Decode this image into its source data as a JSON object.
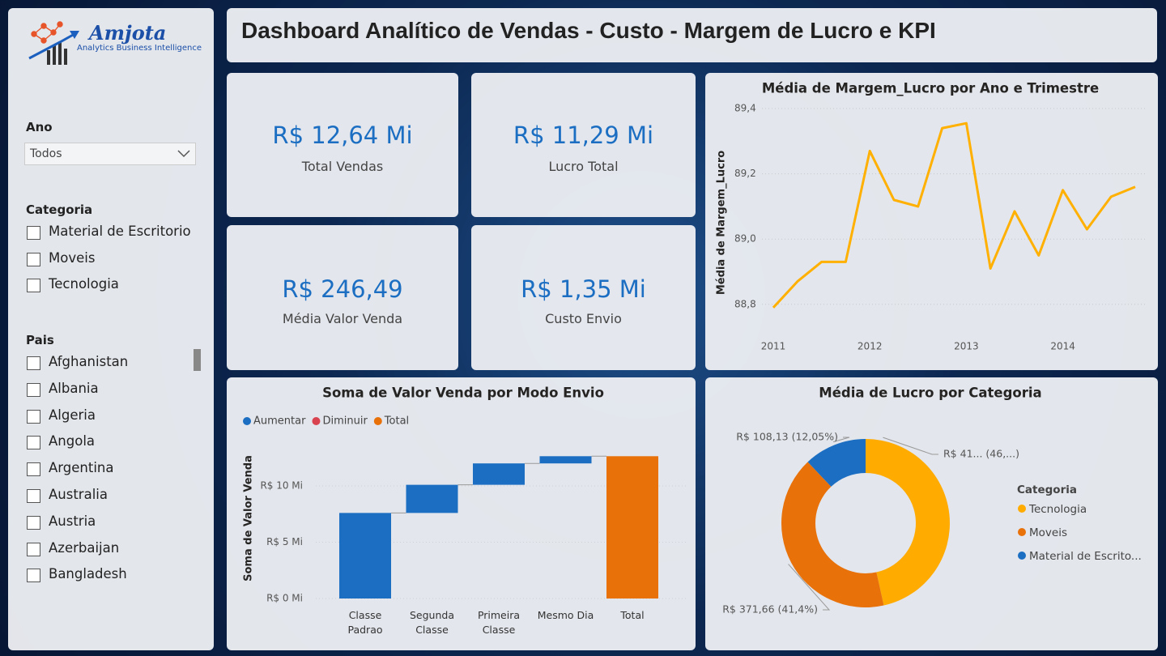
{
  "logo": {
    "name": "Amjota",
    "tagline": "Analytics Business Intelligence"
  },
  "header": {
    "title": "Dashboard Analítico de Vendas - Custo - Margem de Lucro e KPI"
  },
  "filters": {
    "year": {
      "label": "Ano",
      "selected": "Todos"
    },
    "category": {
      "label": "Categoria",
      "options": [
        "Material de Escritorio",
        "Moveis",
        "Tecnologia"
      ]
    },
    "country": {
      "label": "Pais",
      "options": [
        "Afghanistan",
        "Albania",
        "Algeria",
        "Angola",
        "Argentina",
        "Australia",
        "Austria",
        "Azerbaijan",
        "Bangladesh"
      ]
    }
  },
  "kpis": [
    {
      "value": "R$ 12,64 Mi",
      "label": "Total Vendas"
    },
    {
      "value": "R$ 11,29 Mi",
      "label": "Lucro Total"
    },
    {
      "value": "R$ 246,49",
      "label": "Média Valor Venda"
    },
    {
      "value": "R$ 1,35 Mi",
      "label": "Custo Envio"
    }
  ],
  "chart_data": [
    {
      "type": "line",
      "title": "Média de Margem_Lucro por Ano e Trimestre",
      "y_label": "Média de Margem_Lucro",
      "categories": [
        "2011",
        null,
        null,
        null,
        "2012",
        null,
        null,
        null,
        "2013",
        null,
        null,
        null,
        "2014",
        null,
        null,
        null
      ],
      "values": [
        88.79,
        88.87,
        88.93,
        88.93,
        89.27,
        89.12,
        89.1,
        89.34,
        89.355,
        88.91,
        89.085,
        88.95,
        89.15,
        89.03,
        89.13,
        89.16
      ],
      "color": "#ffb000",
      "ylim": [
        88.73,
        89.42
      ],
      "yticks": [
        {
          "value": 88.8,
          "label": "88,8"
        },
        {
          "value": 89.0,
          "label": "89,0"
        },
        {
          "value": 89.2,
          "label": "89,2"
        },
        {
          "value": 89.4,
          "label": "89,4"
        }
      ],
      "grid": true
    },
    {
      "type": "waterfall",
      "title": "Soma de Valor Venda por Modo Envio",
      "y_label": "Soma de Valor Venda",
      "categories": [
        "Classe Padrao",
        "Segunda Classe",
        "Primeira Classe",
        "Mesmo Dia",
        "Total"
      ],
      "values": [
        7.6,
        2.5,
        1.9,
        0.64,
        12.64
      ],
      "legend": [
        {
          "name": "Aumentar",
          "color": "#1b6ec2"
        },
        {
          "name": "Diminuir",
          "color": "#d9434f"
        },
        {
          "name": "Total",
          "color": "#e8710a"
        }
      ],
      "ylim": [
        0,
        14
      ],
      "yticks": [
        {
          "value": 0,
          "label": "R$ 0 Mi"
        },
        {
          "value": 5,
          "label": "R$ 5 Mi"
        },
        {
          "value": 10,
          "label": "R$ 10 Mi"
        }
      ]
    },
    {
      "type": "pie",
      "donut": true,
      "title": "Média de Lucro por Categoria",
      "legend_title": "Categoria",
      "categories": [
        "Tecnologia",
        "Moveis",
        "Material de Escrito..."
      ],
      "values": [
        417.6,
        371.66,
        108.13
      ],
      "value_labels": [
        "R$ 41... (46,...)",
        "R$ 371,66 (41,4%)",
        "R$ 108,13 (12,05%)"
      ],
      "colors": [
        "#ffab00",
        "#e8710a",
        "#1b6ec2"
      ]
    }
  ]
}
